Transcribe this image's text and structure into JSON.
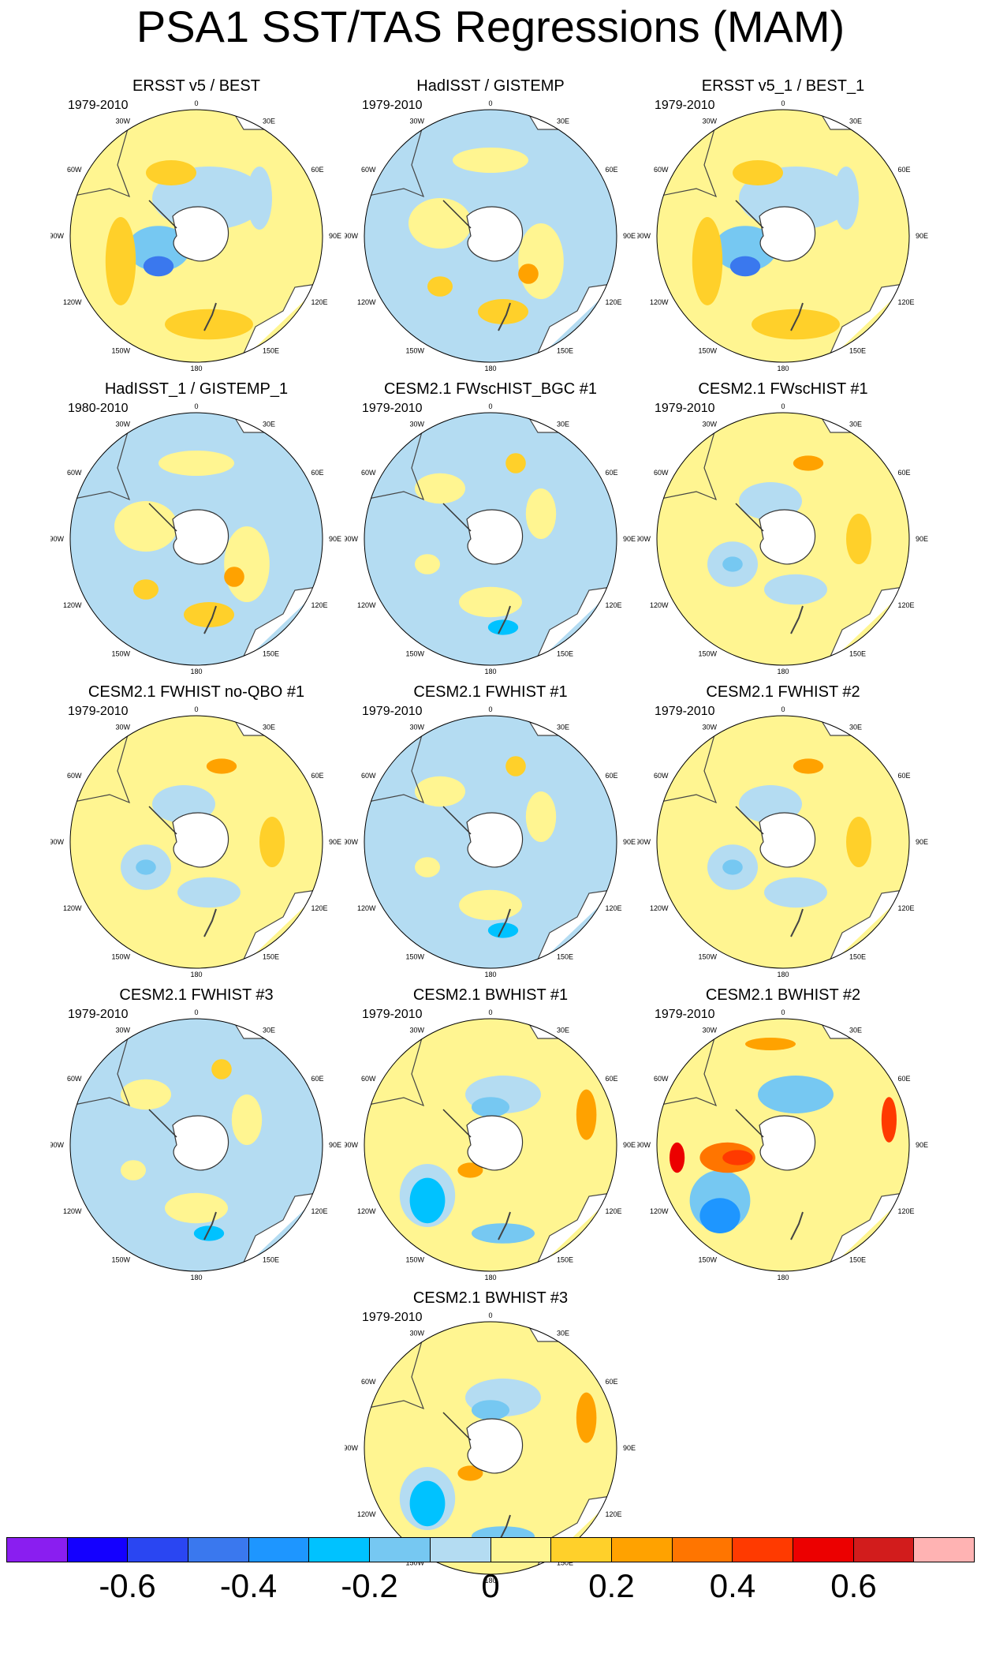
{
  "title": "PSA1 SST/TAS Regressions (MAM)",
  "longitude_labels": [
    "0",
    "30E",
    "60E",
    "90E",
    "120E",
    "150E",
    "180",
    "150W",
    "120W",
    "90W",
    "60W",
    "30W"
  ],
  "panels": [
    {
      "title": "ERSST v5 / BEST",
      "years": "1979-2010",
      "pattern": "obs-a"
    },
    {
      "title": "HadISST / GISTEMP",
      "years": "1979-2010",
      "pattern": "obs-b"
    },
    {
      "title": "ERSST v5_1 / BEST_1",
      "years": "1979-2010",
      "pattern": "obs-a"
    },
    {
      "title": "HadISST_1 / GISTEMP_1",
      "years": "1980-2010",
      "pattern": "obs-b"
    },
    {
      "title": "CESM2.1 FWscHIST_BGC #1",
      "years": "1979-2010",
      "pattern": "model-neg"
    },
    {
      "title": "CESM2.1 FWscHIST #1",
      "years": "1979-2010",
      "pattern": "model-mixed"
    },
    {
      "title": "CESM2.1 FWHIST no-QBO #1",
      "years": "1979-2010",
      "pattern": "model-mixed"
    },
    {
      "title": "CESM2.1 FWHIST #1",
      "years": "1979-2010",
      "pattern": "model-neg"
    },
    {
      "title": "CESM2.1 FWHIST #2",
      "years": "1979-2010",
      "pattern": "model-mixed"
    },
    {
      "title": "CESM2.1 FWHIST #3",
      "years": "1979-2010",
      "pattern": "model-neg"
    },
    {
      "title": "CESM2.1 BWHIST #1",
      "years": "1979-2010",
      "pattern": "strong"
    },
    {
      "title": "CESM2.1 BWHIST #2",
      "years": "1979-2010",
      "pattern": "strongest"
    },
    {
      "title": "CESM2.1 BWHIST #3",
      "years": "1979-2010",
      "pattern": "strong"
    }
  ],
  "colorbar": {
    "colors": [
      "#8a1ef0",
      "#1400ff",
      "#2a46f2",
      "#3a78ee",
      "#1e96ff",
      "#00c2ff",
      "#76c8f2",
      "#b4dcf2",
      "#fff591",
      "#ffd02a",
      "#ffa200",
      "#ff7500",
      "#ff3a00",
      "#ec0000",
      "#d21c1c",
      "#ffb3b3"
    ],
    "tick_labels": [
      "-0.6",
      "-0.4",
      "-0.2",
      "0",
      "0.2",
      "0.4",
      "0.6"
    ]
  }
}
